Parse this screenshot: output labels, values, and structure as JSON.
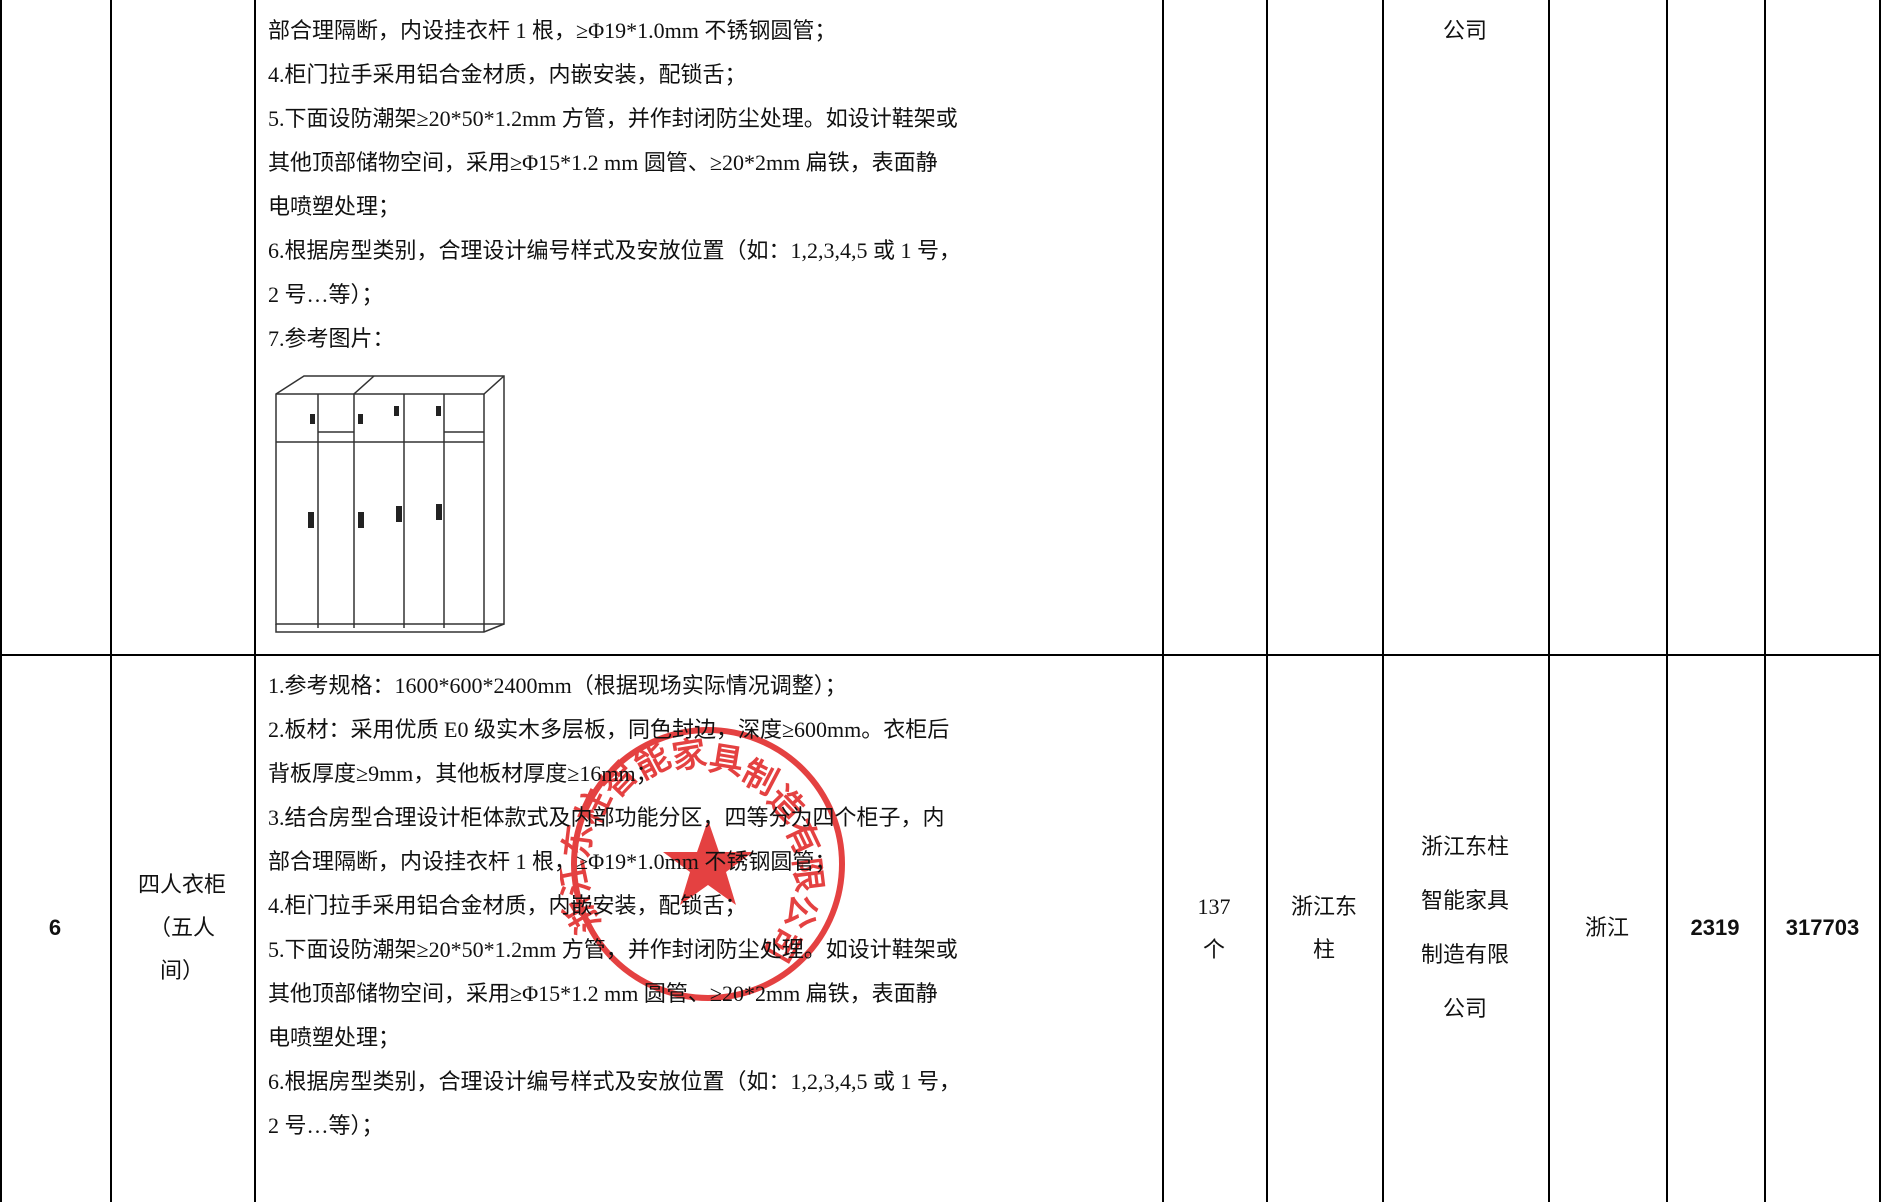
{
  "table": {
    "rows": [
      {
        "spec_lines": [
          "部合理隔断，内设挂衣杆 1 根，≥Φ19*1.0mm 不锈钢圆管；",
          "4.柜门拉手采用铝合金材质，内嵌安装，配锁舌；",
          "5.下面设防潮架≥20*50*1.2mm 方管，并作封闭防尘处理。如设计鞋架或",
          "其他顶部储物空间，采用≥Φ15*1.2 mm 圆管、≥20*2mm 扁铁，表面静",
          "电喷塑处理；",
          "6.根据房型类别，合理设计编号样式及安放位置（如：1,2,3,4,5 或 1 号，",
          "2 号…等）；",
          "7.参考图片："
        ],
        "maker": [
          "公司"
        ]
      },
      {
        "no": "6",
        "name": [
          "四人衣柜",
          "（五人",
          "间）"
        ],
        "spec_lines": [
          "1.参考规格：1600*600*2400mm（根据现场实际情况调整）；",
          "2.板材：采用优质 E0 级实木多层板，同色封边，深度≥600mm。衣柜后",
          "背板厚度≥9mm，其他板材厚度≥16mm；",
          "3.结合房型合理设计柜体款式及内部功能分区，四等分为四个柜子，内",
          "部合理隔断，内设挂衣杆 1 根，≥Φ19*1.0mm 不锈钢圆管；",
          "4.柜门拉手采用铝合金材质，内嵌安装，配锁舌；",
          "5.下面设防潮架≥20*50*1.2mm 方管，并作封闭防尘处理。如设计鞋架或",
          "其他顶部储物空间，采用≥Φ15*1.2 mm 圆管、≥20*2mm 扁铁，表面静",
          "电喷塑处理；",
          "6.根据房型类别，合理设计编号样式及安放位置（如：1,2,3,4,5 或 1 号，",
          "2 号…等）；"
        ],
        "quantity": [
          "137",
          "个"
        ],
        "brand": [
          "浙江东",
          "柱"
        ],
        "maker": [
          "浙江东柱",
          "智能家具",
          "制造有限",
          "公司"
        ],
        "origin": "浙江",
        "unit_price": "2319",
        "total": "317703"
      }
    ]
  },
  "stamp": "浙江东柱智能家具制造有限公司"
}
